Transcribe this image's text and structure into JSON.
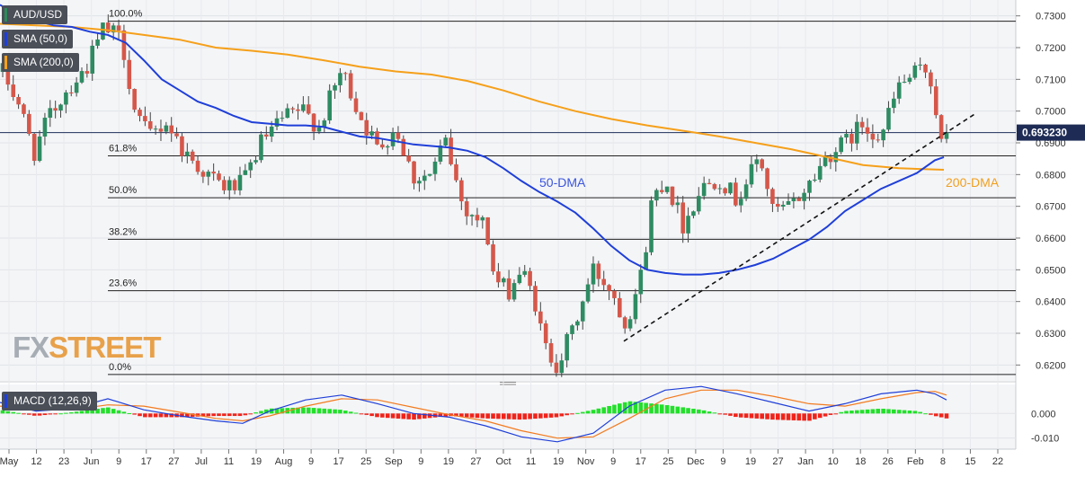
{
  "chart_data": [
    {
      "type": "line",
      "panel": "price",
      "symbol": "AUD/USD",
      "indicators": [
        "SMA (50,0)",
        "SMA (200,0)"
      ],
      "series": [
        {
          "name": "SMA (50,0)",
          "color": "#1f3fd8"
        },
        {
          "name": "SMA (200,0)",
          "color": "#f5a01a"
        }
      ],
      "ylim": [
        0.615,
        0.735
      ],
      "ytick_labels": [
        "0.7300",
        "0.7200",
        "0.7100",
        "0.7000",
        "0.6900",
        "0.6800",
        "0.6700",
        "0.6600",
        "0.6500",
        "0.6400",
        "0.6300",
        "0.6200"
      ],
      "yticks": [
        0.73,
        0.72,
        0.71,
        0.7,
        0.69,
        0.68,
        0.67,
        0.66,
        0.65,
        0.64,
        0.63,
        0.62
      ],
      "last_price_label": "0.693230",
      "last_price": 0.69323,
      "fib_levels": [
        {
          "label": "100.0%",
          "value": 0.7283
        },
        {
          "label": "61.8%",
          "value": 0.6859
        },
        {
          "label": "50.0%",
          "value": 0.6727
        },
        {
          "label": "38.2%",
          "value": 0.6596
        },
        {
          "label": "23.6%",
          "value": 0.6434
        },
        {
          "label": "0.0%",
          "value": 0.617
        }
      ],
      "annotations": [
        "50-DMA",
        "200-DMA"
      ],
      "sma50_points": [
        [
          0,
          0.7335
        ],
        [
          20,
          0.73
        ],
        [
          40,
          0.7285
        ],
        [
          60,
          0.727
        ],
        [
          80,
          0.7265
        ],
        [
          100,
          0.725
        ],
        [
          120,
          0.724
        ],
        [
          140,
          0.7215
        ],
        [
          160,
          0.716
        ],
        [
          180,
          0.71
        ],
        [
          200,
          0.7065
        ],
        [
          220,
          0.703
        ],
        [
          240,
          0.701
        ],
        [
          260,
          0.6985
        ],
        [
          280,
          0.6965
        ],
        [
          300,
          0.696
        ],
        [
          320,
          0.6955
        ],
        [
          340,
          0.6955
        ],
        [
          360,
          0.695
        ],
        [
          380,
          0.6935
        ],
        [
          400,
          0.692
        ],
        [
          420,
          0.6915
        ],
        [
          440,
          0.6905
        ],
        [
          460,
          0.6895
        ],
        [
          480,
          0.689
        ],
        [
          500,
          0.6885
        ],
        [
          520,
          0.6875
        ],
        [
          540,
          0.6855
        ],
        [
          560,
          0.682
        ],
        [
          580,
          0.678
        ],
        [
          600,
          0.6745
        ],
        [
          620,
          0.6715
        ],
        [
          640,
          0.668
        ],
        [
          660,
          0.663
        ],
        [
          680,
          0.6575
        ],
        [
          700,
          0.653
        ],
        [
          720,
          0.65
        ],
        [
          740,
          0.649
        ],
        [
          760,
          0.6485
        ],
        [
          780,
          0.6485
        ],
        [
          800,
          0.649
        ],
        [
          820,
          0.65
        ],
        [
          840,
          0.6515
        ],
        [
          860,
          0.6535
        ],
        [
          880,
          0.6565
        ],
        [
          900,
          0.6595
        ],
        [
          920,
          0.6635
        ],
        [
          940,
          0.6685
        ],
        [
          960,
          0.672
        ],
        [
          980,
          0.6755
        ],
        [
          1000,
          0.678
        ],
        [
          1020,
          0.6805
        ],
        [
          1040,
          0.6845
        ],
        [
          1050,
          0.6855
        ]
      ],
      "sma200_points": [
        [
          0,
          0.7275
        ],
        [
          40,
          0.727
        ],
        [
          80,
          0.7265
        ],
        [
          120,
          0.7255
        ],
        [
          160,
          0.724
        ],
        [
          200,
          0.7225
        ],
        [
          240,
          0.72
        ],
        [
          280,
          0.719
        ],
        [
          320,
          0.7178
        ],
        [
          360,
          0.716
        ],
        [
          400,
          0.714
        ],
        [
          440,
          0.7125
        ],
        [
          480,
          0.7115
        ],
        [
          520,
          0.7095
        ],
        [
          560,
          0.7065
        ],
        [
          600,
          0.703
        ],
        [
          640,
          0.7
        ],
        [
          680,
          0.6975
        ],
        [
          720,
          0.6955
        ],
        [
          760,
          0.6938
        ],
        [
          800,
          0.692
        ],
        [
          840,
          0.69
        ],
        [
          880,
          0.688
        ],
        [
          920,
          0.6855
        ],
        [
          960,
          0.683
        ],
        [
          1000,
          0.682
        ],
        [
          1050,
          0.6815
        ]
      ],
      "trendline": {
        "start": [
          694,
          0.6275
        ],
        "end": [
          1084,
          0.699
        ]
      },
      "candles_seed": "piecewise path with 0.0062 noise",
      "candle_count": 180,
      "price_path_knots": [
        [
          0,
          0.714
        ],
        [
          20,
          0.703
        ],
        [
          38,
          0.687
        ],
        [
          55,
          0.6985
        ],
        [
          75,
          0.707
        ],
        [
          95,
          0.713
        ],
        [
          115,
          0.726
        ],
        [
          135,
          0.723
        ],
        [
          150,
          0.7
        ],
        [
          165,
          0.692
        ],
        [
          185,
          0.6965
        ],
        [
          205,
          0.687
        ],
        [
          230,
          0.68
        ],
        [
          250,
          0.676
        ],
        [
          270,
          0.677
        ],
        [
          290,
          0.69
        ],
        [
          315,
          0.6975
        ],
        [
          335,
          0.7005
        ],
        [
          355,
          0.695
        ],
        [
          380,
          0.713
        ],
        [
          400,
          0.699
        ],
        [
          420,
          0.688
        ],
        [
          440,
          0.695
        ],
        [
          460,
          0.679
        ],
        [
          480,
          0.68
        ],
        [
          495,
          0.691
        ],
        [
          515,
          0.67
        ],
        [
          540,
          0.664
        ],
        [
          550,
          0.647
        ],
        [
          565,
          0.643
        ],
        [
          580,
          0.65
        ],
        [
          595,
          0.64
        ],
        [
          605,
          0.626
        ],
        [
          620,
          0.62
        ],
        [
          640,
          0.633
        ],
        [
          660,
          0.65
        ],
        [
          680,
          0.644
        ],
        [
          696,
          0.633
        ],
        [
          715,
          0.65
        ],
        [
          725,
          0.672
        ],
        [
          740,
          0.679
        ],
        [
          760,
          0.664
        ],
        [
          780,
          0.676
        ],
        [
          800,
          0.679
        ],
        [
          820,
          0.672
        ],
        [
          845,
          0.686
        ],
        [
          860,
          0.668
        ],
        [
          880,
          0.67
        ],
        [
          900,
          0.677
        ],
        [
          920,
          0.686
        ],
        [
          940,
          0.69
        ],
        [
          960,
          0.696
        ],
        [
          980,
          0.692
        ],
        [
          1000,
          0.708
        ],
        [
          1020,
          0.712
        ],
        [
          1030,
          0.713
        ],
        [
          1038,
          0.708
        ],
        [
          1046,
          0.689
        ],
        [
          1053,
          0.6932
        ]
      ]
    },
    {
      "type": "line",
      "panel": "macd",
      "indicator": "MACD (12,26,9)",
      "ylim": [
        -0.0145,
        0.0118
      ],
      "ytick_labels": [
        "0.000",
        "-0.010"
      ],
      "yticks": [
        0.0,
        -0.01
      ],
      "colors": {
        "macd": "#1f3fd8",
        "signal": "#f27b1f",
        "hist_up": "#22e02a",
        "hist_down": "#f0231a"
      }
    }
  ],
  "x_axis": {
    "tick_labels": [
      "May",
      "12",
      "23",
      "Jun",
      "9",
      "17",
      "27",
      "Jul",
      "11",
      "19",
      "Aug",
      "9",
      "17",
      "25",
      "Sep",
      "9",
      "19",
      "27",
      "Oct",
      "11",
      "19",
      "Nov",
      "9",
      "17",
      "25",
      "Dec",
      "9",
      "19",
      "27",
      "Jan",
      "10",
      "18",
      "26",
      "Feb",
      "8",
      "15",
      "22"
    ]
  },
  "watermark": {
    "part1": "FX",
    "part2": "STREET"
  }
}
